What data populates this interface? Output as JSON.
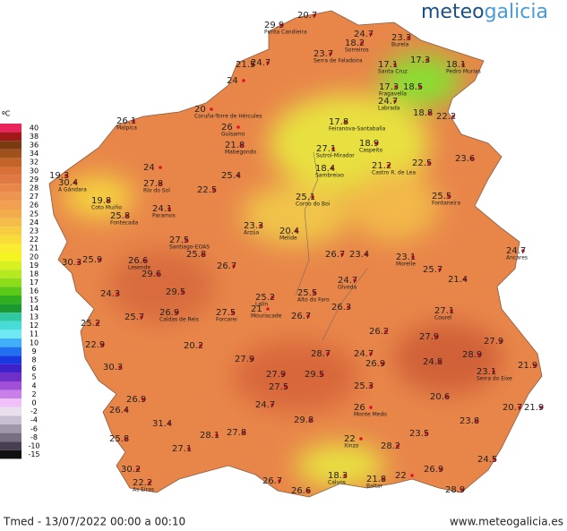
{
  "logo": [
    "meteo",
    "galicia"
  ],
  "legend": {
    "unit": "ºC",
    "steps": [
      {
        "value": 40,
        "color": "#e8245c"
      },
      {
        "value": 38,
        "color": "#a01818"
      },
      {
        "value": 36,
        "color": "#7a3a10"
      },
      {
        "value": 34,
        "color": "#a0521e"
      },
      {
        "value": 32,
        "color": "#c2642a"
      },
      {
        "value": 30,
        "color": "#d8703a"
      },
      {
        "value": 29,
        "color": "#e07844"
      },
      {
        "value": 28,
        "color": "#e8864a"
      },
      {
        "value": 27,
        "color": "#ec9450"
      },
      {
        "value": 26,
        "color": "#f0a050"
      },
      {
        "value": 25,
        "color": "#f2ac4c"
      },
      {
        "value": 24,
        "color": "#f4bc48"
      },
      {
        "value": 23,
        "color": "#f6cc40"
      },
      {
        "value": 22,
        "color": "#f8dc38"
      },
      {
        "value": 21,
        "color": "#faec30"
      },
      {
        "value": 20,
        "color": "#f4f420"
      },
      {
        "value": 19,
        "color": "#d8f020"
      },
      {
        "value": 18,
        "color": "#b4e820"
      },
      {
        "value": 17,
        "color": "#8cdc1c"
      },
      {
        "value": 16,
        "color": "#5cc818"
      },
      {
        "value": 15,
        "color": "#30b020"
      },
      {
        "value": 14,
        "color": "#1c9830"
      },
      {
        "value": 13,
        "color": "#30c8a0"
      },
      {
        "value": 12,
        "color": "#48dcd8"
      },
      {
        "value": 11,
        "color": "#70e8f4"
      },
      {
        "value": 10,
        "color": "#40b0f8"
      },
      {
        "value": 9,
        "color": "#2070f0"
      },
      {
        "value": 8,
        "color": "#1838e0"
      },
      {
        "value": 6,
        "color": "#4020c8"
      },
      {
        "value": 5,
        "color": "#7030c8"
      },
      {
        "value": 4,
        "color": "#a050d8"
      },
      {
        "value": 2,
        "color": "#c880e8"
      },
      {
        "value": 0,
        "color": "#f0c0f8"
      },
      {
        "value": -2,
        "color": "#e8e0ec"
      },
      {
        "value": -4,
        "color": "#c8c0d0"
      },
      {
        "value": -6,
        "color": "#a098a8"
      },
      {
        "value": -8,
        "color": "#787080"
      },
      {
        "value": -10,
        "color": "#484050"
      },
      {
        "value": -15,
        "color": "#101010"
      }
    ]
  },
  "stations": [
    {
      "value": 29.9,
      "name": "Punta Candieira"
    },
    {
      "value": 20.7
    },
    {
      "value": 24.7
    },
    {
      "value": 23.3,
      "name": "Burela"
    },
    {
      "value": 18.2,
      "name": "Sorreiros"
    },
    {
      "value": 23.7,
      "name": "Serra de Faladoira"
    },
    {
      "value": 21.5
    },
    {
      "value": 24.7
    },
    {
      "value": 24.0
    },
    {
      "value": 17.1,
      "name": "Santa Cruz"
    },
    {
      "value": 17.3
    },
    {
      "value": 18.1,
      "name": "Pedro Murias"
    },
    {
      "value": 17.3,
      "name": "Fragavella"
    },
    {
      "value": 18.5
    },
    {
      "value": 24.7,
      "name": "Labrada"
    },
    {
      "value": 18.8
    },
    {
      "value": 22.2
    },
    {
      "value": 20.0,
      "name": "Coruña-Torre de Hércules"
    },
    {
      "value": 26.1,
      "name": "Malpica"
    },
    {
      "value": 26.0,
      "name": "Guísamo"
    },
    {
      "value": 17.8,
      "name": "Feiranova-Santaballa"
    },
    {
      "value": 21.8,
      "name": "Mabegondo"
    },
    {
      "value": 18.9,
      "name": "Caspeito"
    },
    {
      "value": 27.1,
      "name": "Sutrol-Mirador"
    },
    {
      "value": 23.6
    },
    {
      "value": 21.2,
      "name": "Castro R. de Lea"
    },
    {
      "value": 22.5
    },
    {
      "value": 18.4,
      "name": "Sambreixo"
    },
    {
      "value": 24.0
    },
    {
      "value": 19.3
    },
    {
      "value": 30.4,
      "name": "A Gándara"
    },
    {
      "value": 25.4
    },
    {
      "value": 27.8,
      "name": "Río do Sol"
    },
    {
      "value": 22.5
    },
    {
      "value": 25.1,
      "name": "Corno do Boi"
    },
    {
      "value": 25.5,
      "name": "Fontaneira"
    },
    {
      "value": 19.8,
      "name": "Coto Muiño"
    },
    {
      "value": 24.1,
      "name": "Paramos"
    },
    {
      "value": 25.8,
      "name": "Fontecada"
    },
    {
      "value": 23.3,
      "name": "Arzúa"
    },
    {
      "value": 20.4,
      "name": "Melide"
    },
    {
      "value": 27.5,
      "name": "Santiago-EOAS"
    },
    {
      "value": 24.7,
      "name": "Ancares"
    },
    {
      "value": 26.7
    },
    {
      "value": 23.4
    },
    {
      "value": 23.1,
      "name": "Morelle"
    },
    {
      "value": 30.3
    },
    {
      "value": 25.9
    },
    {
      "value": 26.6,
      "name": "Lesende"
    },
    {
      "value": 25.8
    },
    {
      "value": 26.7
    },
    {
      "value": 25.7
    },
    {
      "value": 21.4
    },
    {
      "value": 24.7,
      "name": "Olveda"
    },
    {
      "value": 29.6
    },
    {
      "value": 24.3
    },
    {
      "value": 29.5
    },
    {
      "value": 25.2,
      "name": "Lalín"
    },
    {
      "value": 25.5,
      "name": "Alto do Faro"
    },
    {
      "value": 21.0,
      "name": "Mouriscade"
    },
    {
      "value": 26.3
    },
    {
      "value": 27.1,
      "name": "Courel"
    },
    {
      "value": 26.9,
      "name": "Caldas de Reis"
    },
    {
      "value": 27.5,
      "name": "Forcarei"
    },
    {
      "value": 26.7
    },
    {
      "value": 25.2
    },
    {
      "value": 25.7
    },
    {
      "value": 26.2
    },
    {
      "value": 27.9
    },
    {
      "value": 27.9
    },
    {
      "value": 22.9
    },
    {
      "value": 20.2
    },
    {
      "value": 28.7
    },
    {
      "value": 24.7
    },
    {
      "value": 27.9
    },
    {
      "value": 26.9
    },
    {
      "value": 24.8
    },
    {
      "value": 28.9
    },
    {
      "value": 23.1,
      "name": "Serra do Eixe"
    },
    {
      "value": 21.9
    },
    {
      "value": 30.3
    },
    {
      "value": 27.9
    },
    {
      "value": 29.5
    },
    {
      "value": 26.9
    },
    {
      "value": 25.3
    },
    {
      "value": 20.6
    },
    {
      "value": 27.5
    },
    {
      "value": 26.4
    },
    {
      "value": 24.7
    },
    {
      "value": 26.0,
      "name": "Monte Medo"
    },
    {
      "value": 23.8
    },
    {
      "value": 20.7
    },
    {
      "value": 21.9
    },
    {
      "value": 29.8
    },
    {
      "value": 31.4
    },
    {
      "value": 25.8
    },
    {
      "value": 28.1
    },
    {
      "value": 27.8
    },
    {
      "value": 22.0,
      "name": "Xinzo"
    },
    {
      "value": 23.5
    },
    {
      "value": 27.1
    },
    {
      "value": 28.2
    },
    {
      "value": 24.5
    },
    {
      "value": 30.2
    },
    {
      "value": 22.2,
      "name": "As Eiras"
    },
    {
      "value": 18.3,
      "name": "Calvos"
    },
    {
      "value": 21.8,
      "name": "Baltar"
    },
    {
      "value": 22.0
    },
    {
      "value": 26.9
    },
    {
      "value": 26.7
    },
    {
      "value": 26.6
    },
    {
      "value": 28.9
    }
  ],
  "footer": {
    "caption": "Tmed - 13/07/2022 00:00 a 00:10",
    "url": "www.meteogalicia.es"
  }
}
